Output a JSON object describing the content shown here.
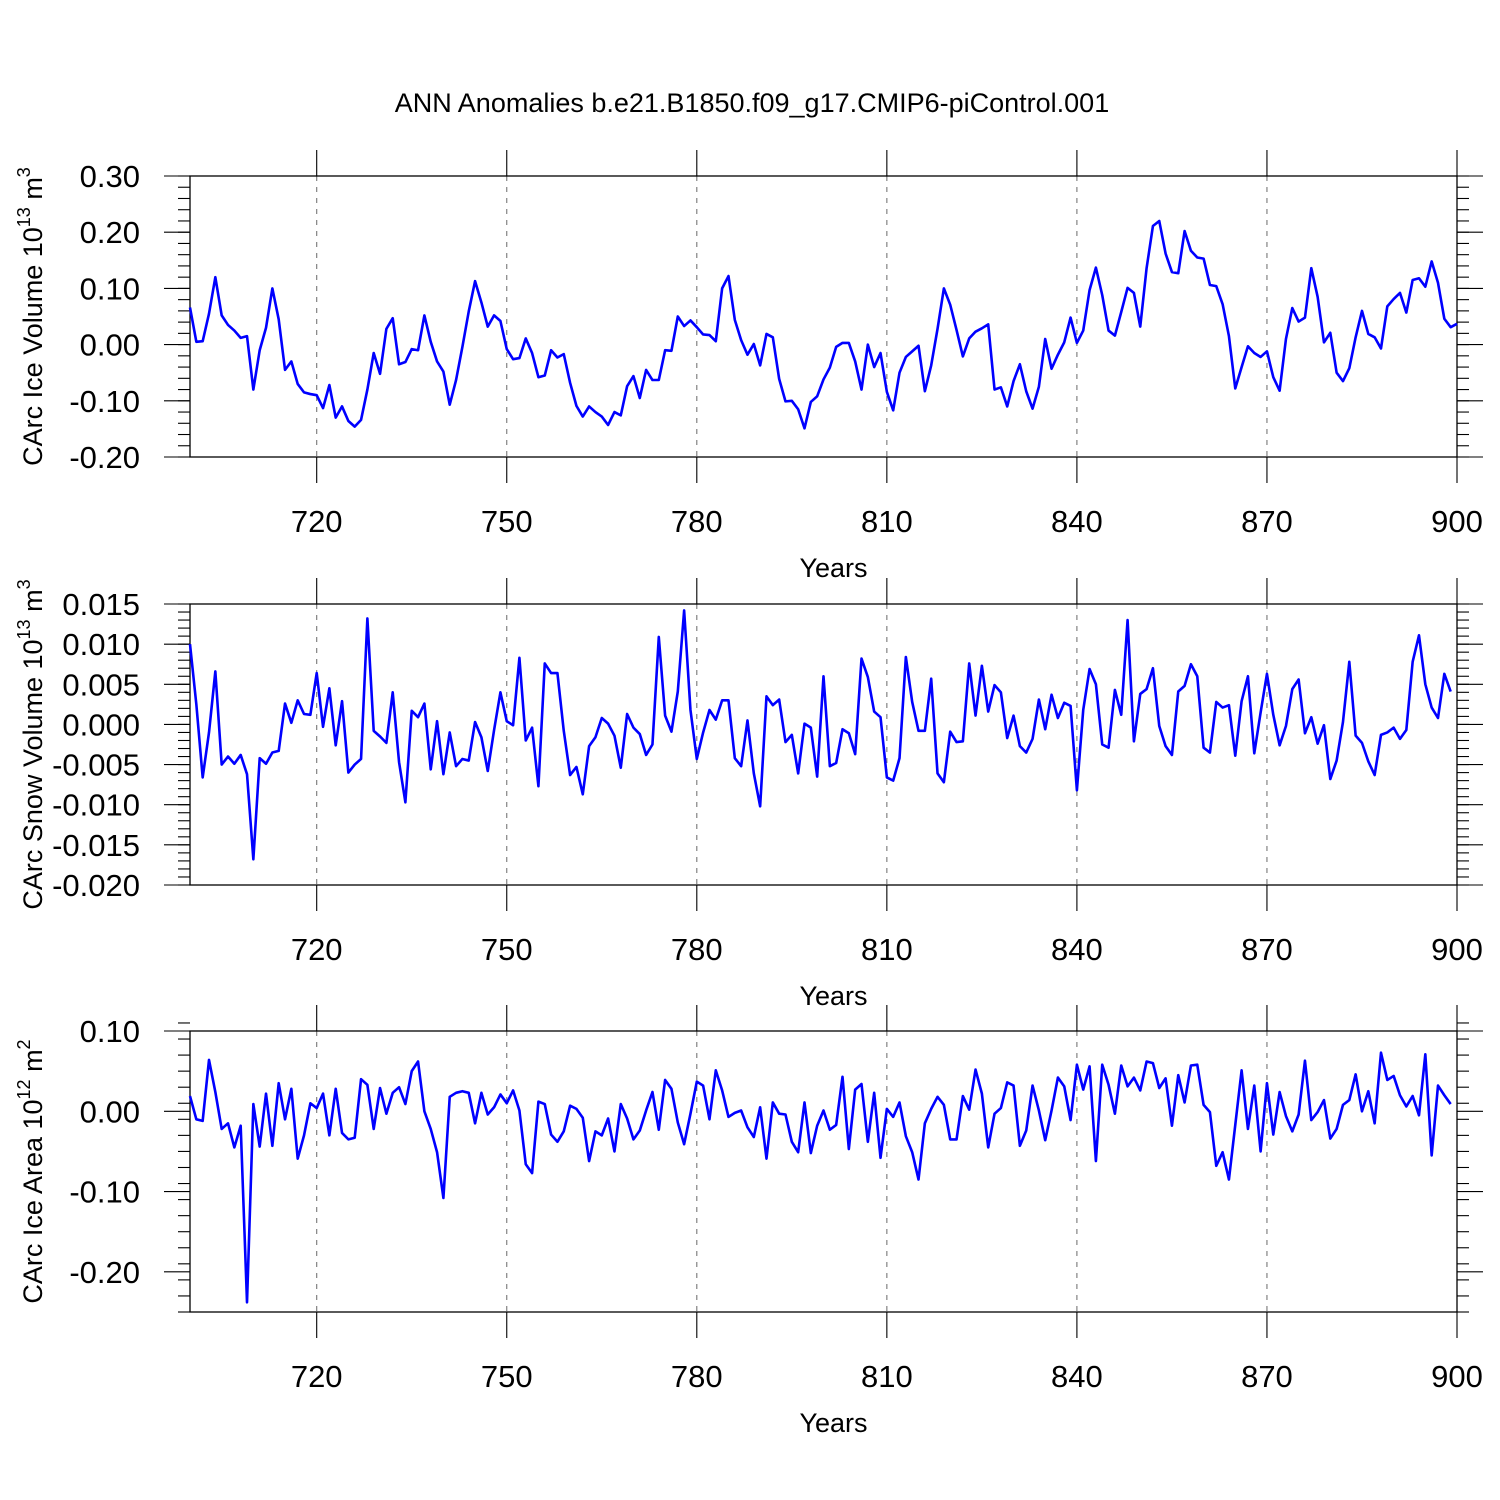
{
  "title": "ANN Anomalies b.e21.B1850.f09_g17.CMIP6-piControl.001",
  "colors": {
    "line": "#0000ff",
    "axis": "#000000",
    "grid": "#777777"
  },
  "chart_data": [
    {
      "type": "line",
      "name": "ice-volume",
      "ylabel_main": "CArc Ice Volume 10",
      "ylabel_exp": "13",
      "ylabel_unit": "m",
      "ylabel_unit_exp": "3",
      "xlabel": "Years",
      "xlim": [
        700,
        900
      ],
      "ylim": [
        -0.2,
        0.3
      ],
      "xticks": [
        720,
        750,
        780,
        810,
        840,
        870,
        900
      ],
      "xtick_labels": [
        "720",
        "750",
        "780",
        "810",
        "840",
        "870",
        "900"
      ],
      "yticks": [
        -0.2,
        -0.1,
        0.0,
        0.1,
        0.2,
        0.3
      ],
      "ytick_labels": [
        "-0.20",
        "-0.10",
        "0.00",
        "0.10",
        "0.20",
        "0.30"
      ],
      "yminor_step": 0.02,
      "grid": "vertical-dashed",
      "x_start": 700,
      "values": [
        0.066,
        0.005,
        0.006,
        0.055,
        0.12,
        0.052,
        0.035,
        0.025,
        0.012,
        0.015,
        -0.08,
        -0.01,
        0.03,
        0.1,
        0.045,
        -0.045,
        -0.03,
        -0.07,
        -0.085,
        -0.088,
        -0.09,
        -0.113,
        -0.072,
        -0.13,
        -0.11,
        -0.136,
        -0.146,
        -0.134,
        -0.08,
        -0.015,
        -0.052,
        0.028,
        0.047,
        -0.035,
        -0.031,
        -0.008,
        -0.01,
        0.052,
        0.005,
        -0.03,
        -0.048,
        -0.107,
        -0.063,
        -0.004,
        0.059,
        0.113,
        0.075,
        0.032,
        0.052,
        0.042,
        -0.008,
        -0.026,
        -0.024,
        0.011,
        -0.015,
        -0.058,
        -0.055,
        -0.01,
        -0.023,
        -0.017,
        -0.068,
        -0.109,
        -0.128,
        -0.11,
        -0.12,
        -0.128,
        -0.143,
        -0.12,
        -0.126,
        -0.074,
        -0.056,
        -0.095,
        -0.045,
        -0.063,
        -0.063,
        -0.01,
        -0.011,
        0.05,
        0.033,
        0.043,
        0.031,
        0.018,
        0.017,
        0.006,
        0.1,
        0.122,
        0.044,
        0.008,
        -0.018,
        0.001,
        -0.037,
        0.019,
        0.013,
        -0.061,
        -0.101,
        -0.1,
        -0.115,
        -0.149,
        -0.102,
        -0.092,
        -0.062,
        -0.041,
        -0.004,
        0.003,
        0.003,
        -0.03,
        -0.08,
        0.0,
        -0.04,
        -0.015,
        -0.084,
        -0.117,
        -0.05,
        -0.022,
        -0.012,
        -0.002,
        -0.083,
        -0.037,
        0.028,
        0.1,
        0.071,
        0.026,
        -0.021,
        0.011,
        0.023,
        0.029,
        0.036,
        -0.08,
        -0.076,
        -0.11,
        -0.065,
        -0.035,
        -0.083,
        -0.114,
        -0.075,
        0.01,
        -0.043,
        -0.018,
        0.004,
        0.048,
        0.003,
        0.025,
        0.097,
        0.137,
        0.088,
        0.025,
        0.016,
        0.058,
        0.101,
        0.092,
        0.032,
        0.136,
        0.211,
        0.22,
        0.162,
        0.129,
        0.127,
        0.202,
        0.167,
        0.155,
        0.153,
        0.106,
        0.104,
        0.072,
        0.015,
        -0.078,
        -0.04,
        -0.003,
        -0.015,
        -0.022,
        -0.012,
        -0.058,
        -0.082,
        0.01,
        0.065,
        0.041,
        0.048,
        0.136,
        0.085,
        0.004,
        0.021,
        -0.05,
        -0.065,
        -0.042,
        0.013,
        0.06,
        0.019,
        0.013,
        -0.007,
        0.068,
        0.081,
        0.092,
        0.057,
        0.115,
        0.118,
        0.103,
        0.148,
        0.11,
        0.046,
        0.031,
        0.037
      ]
    },
    {
      "type": "line",
      "name": "snow-volume",
      "ylabel_main": "CArc Snow Volume 10",
      "ylabel_exp": "13",
      "ylabel_unit": "m",
      "ylabel_unit_exp": "3",
      "xlabel": "Years",
      "xlim": [
        700,
        900
      ],
      "ylim": [
        -0.02,
        0.015
      ],
      "xticks": [
        720,
        750,
        780,
        810,
        840,
        870,
        900
      ],
      "xtick_labels": [
        "720",
        "750",
        "780",
        "810",
        "840",
        "870",
        "900"
      ],
      "yticks": [
        -0.02,
        -0.015,
        -0.01,
        -0.005,
        0.0,
        0.005,
        0.01,
        0.015
      ],
      "ytick_labels": [
        "-0.020",
        "-0.015",
        "-0.010",
        "-0.005",
        "0.000",
        "0.005",
        "0.010",
        "0.015"
      ],
      "yminor_step": 0.001,
      "grid": "vertical-dashed",
      "x_start": 700,
      "values": [
        0.01,
        0.0025,
        -0.0066,
        -0.001,
        0.0066,
        -0.005,
        -0.004,
        -0.0049,
        -0.0038,
        -0.0062,
        -0.0168,
        -0.0042,
        -0.0049,
        -0.0035,
        -0.0033,
        0.0026,
        0.0002,
        0.003,
        0.0013,
        0.0012,
        0.0064,
        -0.0003,
        0.0045,
        -0.0026,
        0.0029,
        -0.006,
        -0.005,
        -0.0043,
        0.0132,
        -0.0008,
        -0.0015,
        -0.0023,
        0.004,
        -0.0047,
        -0.0097,
        0.0017,
        0.0009,
        0.0026,
        -0.0056,
        0.0004,
        -0.0062,
        -0.001,
        -0.0052,
        -0.0043,
        -0.0045,
        0.0003,
        -0.0016,
        -0.0058,
        -0.0007,
        0.004,
        0.0004,
        -0.0001,
        0.0083,
        -0.002,
        -0.0004,
        -0.0077,
        0.0076,
        0.0064,
        0.0064,
        -0.0008,
        -0.0063,
        -0.0053,
        -0.0087,
        -0.0027,
        -0.0016,
        0.0008,
        0.0001,
        -0.0014,
        -0.0054,
        0.0013,
        -0.0004,
        -0.0012,
        -0.0038,
        -0.0025,
        0.0109,
        0.0011,
        -0.0009,
        0.0041,
        0.0142,
        0.0018,
        -0.0043,
        -0.001,
        0.0018,
        0.0006,
        0.003,
        0.003,
        -0.0042,
        -0.0052,
        0.0005,
        -0.0061,
        -0.0102,
        0.0035,
        0.0024,
        0.0031,
        -0.0022,
        -0.0013,
        -0.0061,
        0.0001,
        -0.0004,
        -0.0065,
        0.006,
        -0.0052,
        -0.0048,
        -0.0006,
        -0.0011,
        -0.0037,
        0.0082,
        0.0059,
        0.0016,
        0.0009,
        -0.0066,
        -0.007,
        -0.0042,
        0.0084,
        0.0028,
        -0.0008,
        -0.0008,
        0.0057,
        -0.0061,
        -0.0072,
        -0.0009,
        -0.0022,
        -0.0021,
        0.0076,
        0.0011,
        0.0073,
        0.0016,
        0.0049,
        0.004,
        -0.0017,
        0.0011,
        -0.0027,
        -0.0035,
        -0.0018,
        0.0031,
        -0.0006,
        0.0037,
        0.0008,
        0.0027,
        0.0023,
        -0.0082,
        0.0018,
        0.0069,
        0.005,
        -0.0025,
        -0.0029,
        0.0043,
        0.0012,
        0.013,
        -0.0021,
        0.0038,
        0.0044,
        0.007,
        -0.0002,
        -0.0027,
        -0.0038,
        0.0041,
        0.0048,
        0.0075,
        0.006,
        -0.0029,
        -0.0035,
        0.0028,
        0.0021,
        0.0024,
        -0.0039,
        0.0029,
        0.006,
        -0.0036,
        0.0015,
        0.0063,
        0.0012,
        -0.0026,
        -0.0002,
        0.0044,
        0.0056,
        -0.0011,
        0.0009,
        -0.0024,
        -0.0001,
        -0.0068,
        -0.0045,
        0.0003,
        0.0078,
        -0.0014,
        -0.0023,
        -0.0046,
        -0.0063,
        -0.0013,
        -0.001,
        -0.0004,
        -0.0018,
        -0.0007,
        0.0078,
        0.0111,
        0.005,
        0.0021,
        0.0008,
        0.0063,
        0.0041
      ]
    },
    {
      "type": "line",
      "name": "ice-area",
      "ylabel_main": "CArc Ice Area 10",
      "ylabel_exp": "12",
      "ylabel_unit": "m",
      "ylabel_unit_exp": "2",
      "xlabel": "Years",
      "xlim": [
        700,
        900
      ],
      "ylim": [
        -0.25,
        0.1
      ],
      "xticks": [
        720,
        750,
        780,
        810,
        840,
        870,
        900
      ],
      "xtick_labels": [
        "720",
        "750",
        "780",
        "810",
        "840",
        "870",
        "900"
      ],
      "yticks": [
        -0.2,
        -0.1,
        0.0,
        0.1
      ],
      "ytick_labels": [
        "-0.20",
        "-0.10",
        "0.00",
        "0.10"
      ],
      "yminor_step": 0.02,
      "grid": "vertical-dashed",
      "x_start": 700,
      "values": [
        0.019,
        -0.01,
        -0.012,
        0.064,
        0.024,
        -0.022,
        -0.015,
        -0.045,
        -0.018,
        -0.238,
        0.009,
        -0.044,
        0.022,
        -0.043,
        0.035,
        -0.01,
        0.028,
        -0.059,
        -0.03,
        0.01,
        0.004,
        0.022,
        -0.03,
        0.028,
        -0.027,
        -0.035,
        -0.033,
        0.04,
        0.033,
        -0.022,
        0.029,
        -0.003,
        0.023,
        0.03,
        0.009,
        0.05,
        0.062,
        0.0,
        -0.022,
        -0.051,
        -0.108,
        0.018,
        0.023,
        0.025,
        0.023,
        -0.015,
        0.023,
        -0.004,
        0.005,
        0.021,
        0.01,
        0.026,
        0.001,
        -0.066,
        -0.077,
        0.012,
        0.009,
        -0.029,
        -0.038,
        -0.025,
        0.007,
        0.003,
        -0.008,
        -0.062,
        -0.025,
        -0.03,
        -0.009,
        -0.05,
        0.009,
        -0.009,
        -0.035,
        -0.024,
        0.001,
        0.024,
        -0.023,
        0.039,
        0.028,
        -0.014,
        -0.041,
        -0.003,
        0.037,
        0.032,
        -0.01,
        0.051,
        0.026,
        -0.007,
        -0.002,
        0.001,
        -0.02,
        -0.032,
        0.005,
        -0.059,
        0.011,
        -0.003,
        -0.004,
        -0.038,
        -0.051,
        0.011,
        -0.052,
        -0.018,
        0.001,
        -0.023,
        -0.017,
        0.043,
        -0.047,
        0.027,
        0.034,
        -0.038,
        0.023,
        -0.058,
        0.003,
        -0.007,
        0.011,
        -0.031,
        -0.051,
        -0.085,
        -0.015,
        0.003,
        0.018,
        0.008,
        -0.035,
        -0.035,
        0.019,
        0.002,
        0.052,
        0.022,
        -0.045,
        -0.003,
        0.004,
        0.036,
        0.032,
        -0.043,
        -0.024,
        0.032,
        0.001,
        -0.036,
        0.001,
        0.042,
        0.031,
        -0.011,
        0.058,
        0.027,
        0.056,
        -0.062,
        0.058,
        0.033,
        -0.003,
        0.057,
        0.031,
        0.042,
        0.026,
        0.062,
        0.06,
        0.029,
        0.041,
        -0.018,
        0.045,
        0.011,
        0.057,
        0.058,
        0.008,
        -0.001,
        -0.068,
        -0.051,
        -0.085,
        -0.017,
        0.051,
        -0.022,
        0.032,
        -0.05,
        0.035,
        -0.029,
        0.024,
        -0.006,
        -0.025,
        -0.004,
        0.063,
        -0.011,
        -0.001,
        0.014,
        -0.034,
        -0.022,
        0.008,
        0.014,
        0.046,
        0.0,
        0.025,
        -0.015,
        0.073,
        0.039,
        0.044,
        0.02,
        0.006,
        0.019,
        -0.005,
        0.071,
        -0.055,
        0.032,
        0.02,
        0.009
      ]
    }
  ]
}
